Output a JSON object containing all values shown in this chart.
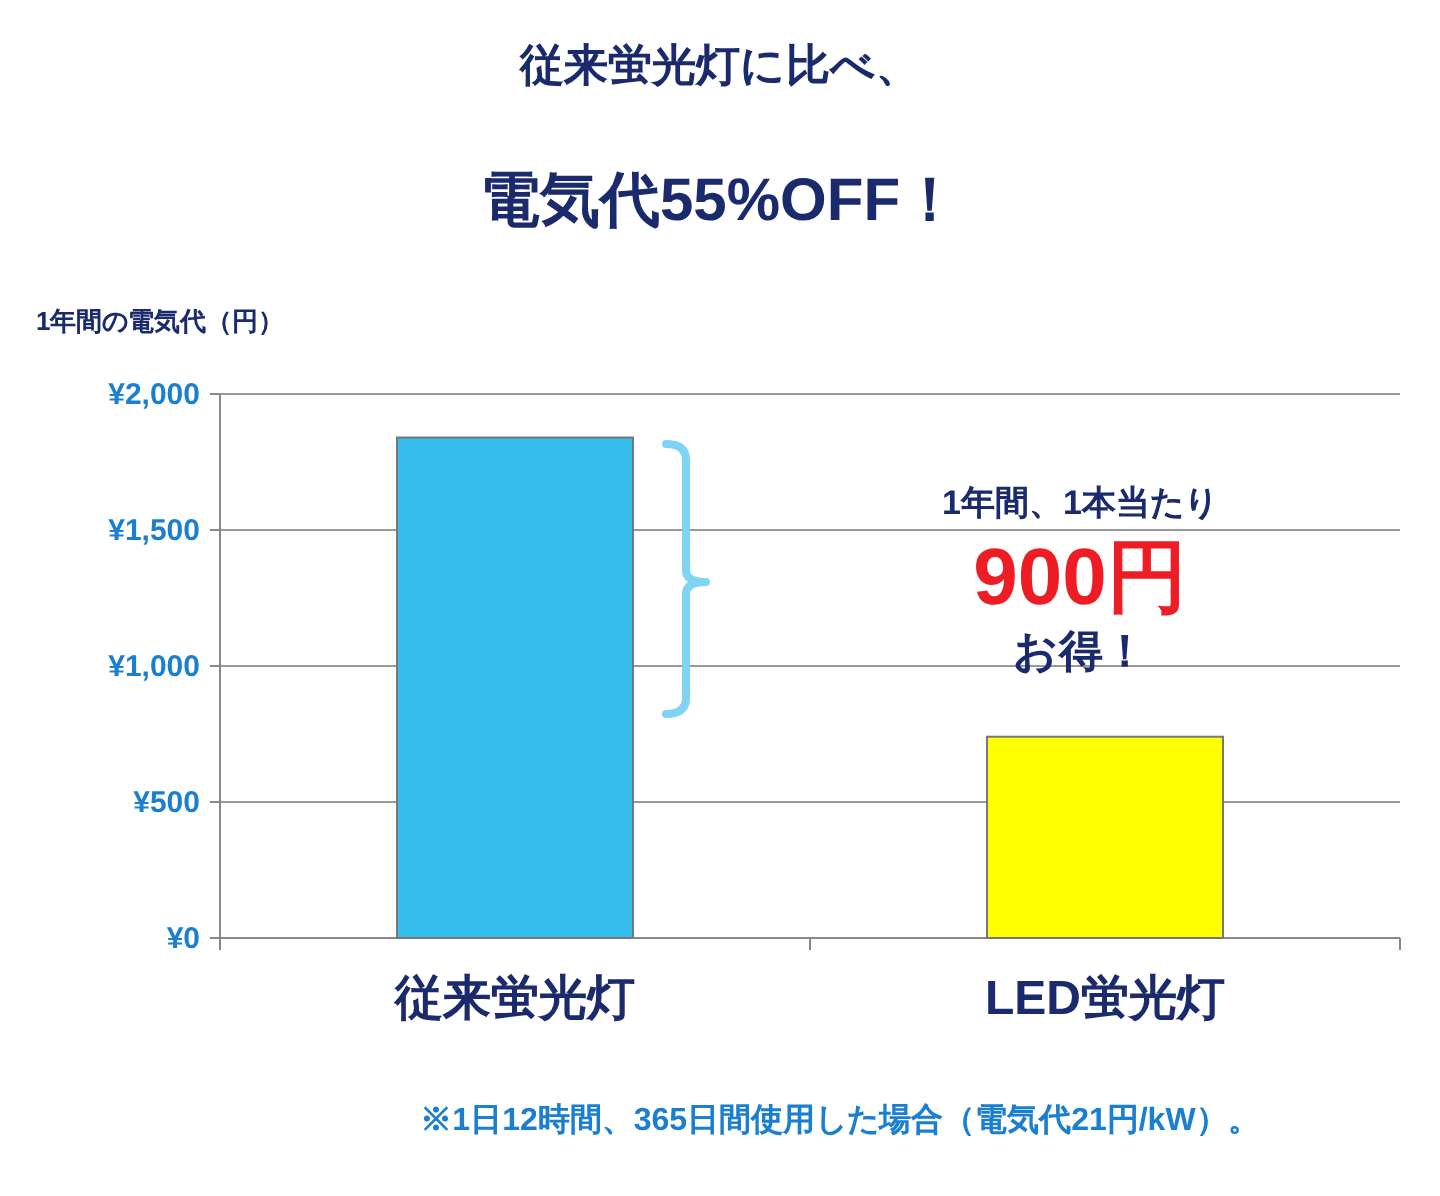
{
  "chart_data": {
    "type": "bar",
    "title": "従来蛍光灯に比べ、",
    "subtitle": "電気代55%OFF！",
    "ylabel": "1年間の電気代（円）",
    "categories": [
      "従来蛍光灯",
      "LED蛍光灯"
    ],
    "values": [
      1840,
      740
    ],
    "colors": [
      "#35bdec",
      "#ffff00"
    ],
    "ylim": [
      0,
      2000
    ],
    "yticks": [
      {
        "value": 0,
        "label": "¥0"
      },
      {
        "value": 500,
        "label": "¥500"
      },
      {
        "value": 1000,
        "label": "¥1,000"
      },
      {
        "value": 1500,
        "label": "¥1,500"
      },
      {
        "value": 2000,
        "label": "¥2,000"
      }
    ],
    "grid": "y",
    "annotations": [
      "1年間、1本当たり",
      "900円",
      "お得！",
      "※1日12時間、365日間使用した場合（電気代21円/kW）。"
    ]
  }
}
